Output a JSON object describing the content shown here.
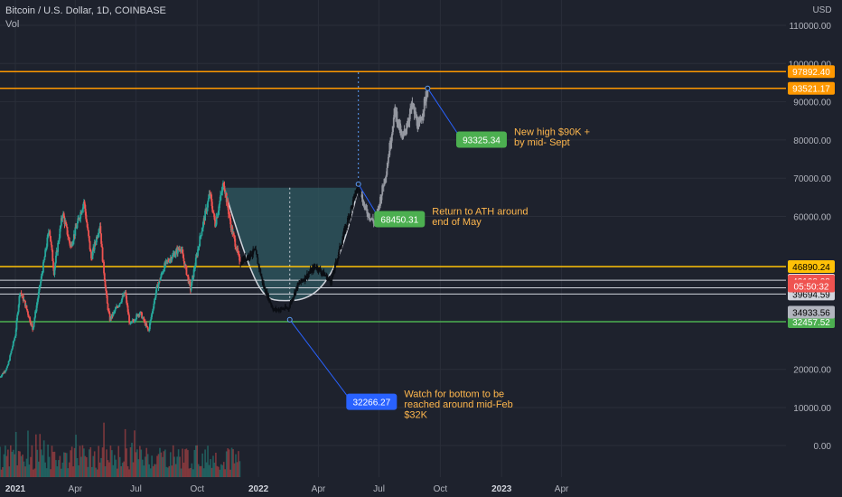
{
  "header": {
    "symbol_title": "Bitcoin / U.S. Dollar, 1D, COINBASE",
    "volume_label": "Vol"
  },
  "colors": {
    "background": "#1e222d",
    "grid": "#2a2e39",
    "text": "#b2b5be",
    "up": "#26a69a",
    "down": "#ef5350",
    "projection": "#9598a1",
    "orange": "#ff9800",
    "yellow": "#ffc107",
    "white": "#d1d4dc",
    "green": "#4caf50",
    "blue": "#2962ff",
    "cup_fill": "#2f5a62"
  },
  "chart_data": {
    "type": "line",
    "title": "Bitcoin / U.S. Dollar, 1D, COINBASE",
    "xlabel": "",
    "ylabel": "USD",
    "x_range": [
      "2020-12-09",
      "2024-05-26"
    ],
    "ylim": [
      10000,
      117000
    ],
    "grid": true,
    "currency_label": "USD",
    "y_ticks": [
      {
        "value": 110000,
        "label": "110000.00"
      },
      {
        "value": 100000,
        "label": "100000.00"
      },
      {
        "value": 90000,
        "label": "90000.00"
      },
      {
        "value": 80000,
        "label": "80000.00"
      },
      {
        "value": 70000,
        "label": "70000.00"
      },
      {
        "value": 60000,
        "label": "60000.00"
      },
      {
        "value": 20000,
        "label": "20000.00"
      },
      {
        "value": 10000,
        "label": "10000.00"
      },
      {
        "value": 0,
        "label": "0.00"
      }
    ],
    "x_ticks": [
      {
        "date": "2021-01-01",
        "label": "2021"
      },
      {
        "date": "2021-04-01",
        "label": "Apr"
      },
      {
        "date": "2021-07-01",
        "label": "Jul"
      },
      {
        "date": "2021-10-01",
        "label": "Oct"
      },
      {
        "date": "2022-01-01",
        "label": "2022"
      },
      {
        "date": "2022-04-01",
        "label": "Apr"
      },
      {
        "date": "2022-07-01",
        "label": "Jul"
      },
      {
        "date": "2022-10-01",
        "label": "Oct"
      },
      {
        "date": "2023-01-01",
        "label": "2023"
      },
      {
        "date": "2023-04-01",
        "label": "Apr"
      }
    ],
    "historical_series": {
      "name": "",
      "points": [
        [
          "2020-12-09",
          18000
        ],
        [
          "2020-12-20",
          20500
        ],
        [
          "2021-01-01",
          29000
        ],
        [
          "2021-01-08",
          40500
        ],
        [
          "2021-01-15",
          37500
        ],
        [
          "2021-01-27",
          30500
        ],
        [
          "2021-02-10",
          45000
        ],
        [
          "2021-02-21",
          57000
        ],
        [
          "2021-02-28",
          45500
        ],
        [
          "2021-03-13",
          61000
        ],
        [
          "2021-03-25",
          52000
        ],
        [
          "2021-04-14",
          64000
        ],
        [
          "2021-04-25",
          49000
        ],
        [
          "2021-05-08",
          58000
        ],
        [
          "2021-05-12",
          49000
        ],
        [
          "2021-05-19",
          37000
        ],
        [
          "2021-05-23",
          33000
        ],
        [
          "2021-06-15",
          40000
        ],
        [
          "2021-06-22",
          31500
        ],
        [
          "2021-07-07",
          35000
        ],
        [
          "2021-07-20",
          30000
        ],
        [
          "2021-08-01",
          41000
        ],
        [
          "2021-08-14",
          47500
        ],
        [
          "2021-09-06",
          52000
        ],
        [
          "2021-09-21",
          41000
        ],
        [
          "2021-10-06",
          55000
        ],
        [
          "2021-10-20",
          66000
        ],
        [
          "2021-10-28",
          58000
        ],
        [
          "2021-11-10",
          69000
        ],
        [
          "2021-11-20",
          58000
        ],
        [
          "2021-12-04",
          48000
        ]
      ]
    },
    "projected_series": {
      "name": "",
      "points": [
        [
          "2021-12-04",
          48000
        ],
        [
          "2021-12-27",
          51000
        ],
        [
          "2022-01-09",
          41500
        ],
        [
          "2022-01-24",
          35500
        ],
        [
          "2022-02-15",
          36000
        ],
        [
          "2022-03-01",
          42000
        ],
        [
          "2022-03-28",
          47000
        ],
        [
          "2022-04-20",
          43000
        ],
        [
          "2022-05-10",
          56000
        ],
        [
          "2022-05-31",
          68450
        ],
        [
          "2022-06-10",
          62000
        ],
        [
          "2022-06-25",
          58000
        ],
        [
          "2022-07-12",
          72000
        ],
        [
          "2022-07-25",
          88000
        ],
        [
          "2022-08-05",
          80000
        ],
        [
          "2022-08-20",
          89000
        ],
        [
          "2022-08-30",
          83000
        ],
        [
          "2022-09-12",
          93521
        ]
      ]
    },
    "volume": {
      "y_zero_label": "0.00"
    },
    "horizontal_levels": [
      {
        "value": 97892.4,
        "label": "97892.40",
        "color": "#ff9800",
        "label_bg": "#ff9800",
        "label_fg": "#ffffff"
      },
      {
        "value": 93521.17,
        "label": "93521.17",
        "color": "#ff9800",
        "label_bg": "#ff9800",
        "label_fg": "#ffffff"
      },
      {
        "value": 46890.24,
        "label": "46890.24",
        "color": "#ffc107",
        "label_bg": "#ffc107",
        "label_fg": "#000000"
      },
      {
        "value": 43317.11,
        "label": "43317.11",
        "color": "#d1d4dc",
        "label_bg": "#ffffff",
        "label_fg": "#000000"
      },
      {
        "value": 41328.57,
        "label": "41328.57",
        "color": "#d1d4dc",
        "label_bg": "#ffffff",
        "label_fg": "#000000"
      },
      {
        "value": 39694.59,
        "label": "39694.59",
        "color": "#d1d4dc",
        "label_bg": "#d1d4dc",
        "label_fg": "#000000"
      },
      {
        "value": 32457.52,
        "label": "32457.52",
        "color": "#4caf50",
        "label_bg": "#4caf50",
        "label_fg": "#ffffff"
      }
    ],
    "price_markers": [
      {
        "value": 43108.08,
        "label": "43108.08",
        "bg": "#ef5350",
        "fg": "#ffffff"
      },
      {
        "value": 41800,
        "label": "05:50:32",
        "bg": "#ef5350",
        "fg": "#ffffff"
      },
      {
        "value": 34933.56,
        "label": "34933.56",
        "bg": "#b2b5be",
        "fg": "#000000"
      }
    ],
    "cup_pattern": {
      "rim_left": [
        "2021-11-10",
        67500
      ],
      "rim_right": [
        "2022-05-31",
        67500
      ],
      "bottom": [
        "2022-02-17",
        38000
      ],
      "midline_date": "2022-02-17"
    },
    "annotations": [
      {
        "from": [
          "2022-09-12",
          93521
        ],
        "to": [
          "2022-11-02",
          80100
        ],
        "badge": "93325.34",
        "badge_bg": "#4caf50",
        "text": [
          "New high $90K +",
          "by mid- Sept"
        ]
      },
      {
        "from": [
          "2022-05-31",
          68450
        ],
        "to": [
          "2022-07-02",
          59300
        ],
        "badge": "68450.31",
        "badge_bg": "#4caf50",
        "text": [
          "Return to ATH around",
          "end of May"
        ]
      },
      {
        "from": [
          "2022-02-17",
          33000
        ],
        "to": [
          "2022-05-21",
          11500
        ],
        "badge": "32266.27",
        "badge_bg": "#2962ff",
        "text": [
          "Watch for bottom to be",
          "reached around mid-Feb",
          "$32K"
        ]
      }
    ]
  }
}
